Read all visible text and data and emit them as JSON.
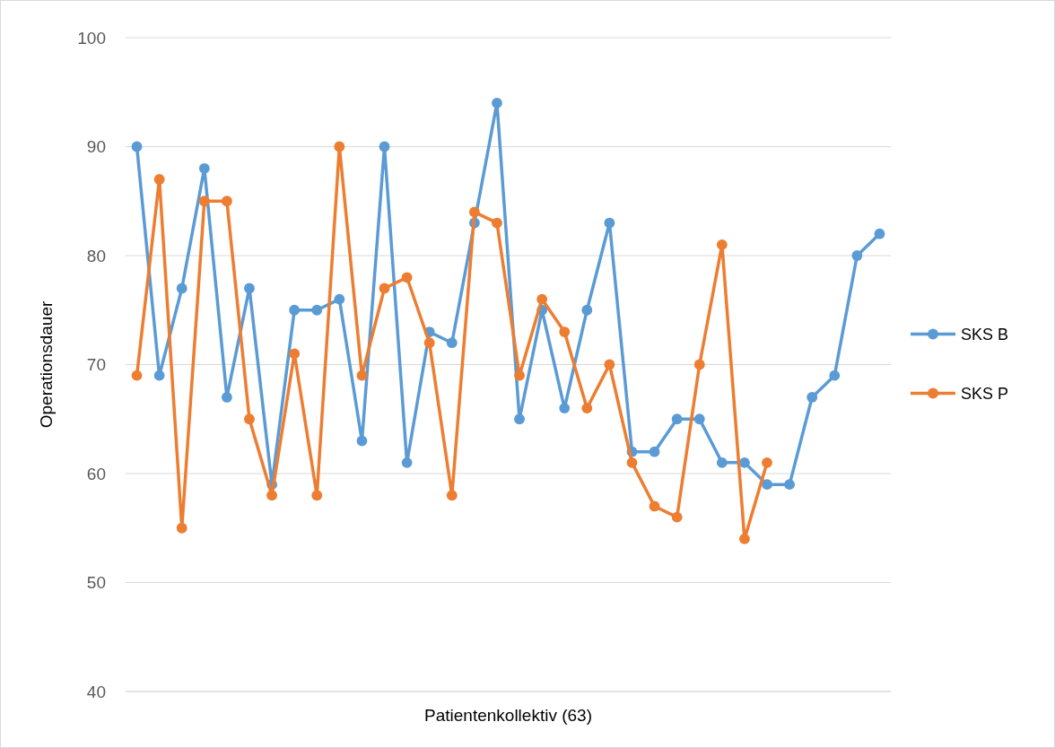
{
  "chart_data": {
    "type": "line",
    "xlabel": "Patientenkollektiv (63)",
    "ylabel": "Operationsdauer",
    "categories": [
      null,
      null,
      null,
      null,
      null,
      null,
      null,
      null,
      null,
      null,
      null,
      null,
      null,
      null,
      null,
      null,
      null,
      null,
      null,
      null,
      null,
      null,
      null,
      null,
      null,
      null,
      null,
      null,
      null,
      null,
      null,
      null,
      null,
      null
    ],
    "series": [
      {
        "name": "SKS B",
        "color": "#5b9bd5",
        "values": [
          90,
          69,
          77,
          88,
          67,
          77,
          59,
          75,
          75,
          76,
          63,
          90,
          61,
          73,
          72,
          83,
          94,
          65,
          75,
          66,
          75,
          83,
          62,
          62,
          65,
          65,
          61,
          61,
          59,
          59,
          67,
          69,
          80,
          82
        ]
      },
      {
        "name": "SKS P",
        "color": "#ed7d31",
        "values": [
          69,
          87,
          55,
          85,
          85,
          65,
          58,
          71,
          58,
          90,
          69,
          77,
          78,
          72,
          58,
          84,
          83,
          69,
          76,
          73,
          66,
          70,
          61,
          57,
          56,
          70,
          81,
          54,
          61,
          null,
          null,
          null,
          null,
          null
        ]
      }
    ],
    "ylim": [
      40,
      100
    ],
    "yticks": [
      40,
      50,
      60,
      70,
      80,
      90,
      100
    ],
    "grid": "y",
    "legend": "right",
    "marker": "circle",
    "line_style": "solid"
  }
}
